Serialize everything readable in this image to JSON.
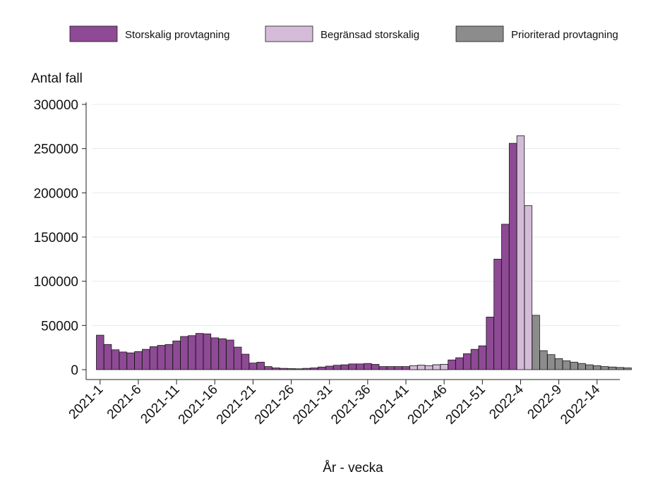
{
  "chart_data": {
    "type": "bar",
    "ylabel": "Antal fall",
    "xlabel": "År - vecka",
    "ylim": [
      0,
      300000
    ],
    "yticks": [
      0,
      50000,
      100000,
      150000,
      200000,
      250000,
      300000
    ],
    "xtick_labels": [
      "2021-1",
      "2021-6",
      "2021-11",
      "2021-16",
      "2021-21",
      "2021-26",
      "2021-31",
      "2021-36",
      "2021-41",
      "2021-46",
      "2021-51",
      "2022-4",
      "2022-9",
      "2022-14"
    ],
    "xtick_indices": [
      0,
      5,
      10,
      15,
      20,
      25,
      30,
      35,
      40,
      45,
      50,
      55,
      60,
      65
    ],
    "grid": true,
    "legend_position": "top",
    "series": [
      {
        "name": "Storskalig provtagning",
        "color": "#8e4a94",
        "x_start": 0,
        "values": [
          39000,
          28500,
          22500,
          20000,
          19000,
          20500,
          23000,
          26000,
          27500,
          28500,
          32500,
          37500,
          38500,
          41000,
          40500,
          36000,
          35000,
          33500,
          25500,
          17500,
          7500,
          8500,
          3500,
          2000,
          1500,
          1200,
          1000,
          1500,
          2000,
          3000,
          4000,
          5000,
          5500,
          6500,
          6500,
          7000,
          6000,
          3500,
          3500,
          3500,
          3500,
          4500,
          5000,
          4500,
          5500,
          6000,
          11000,
          13500,
          18000,
          23000,
          27000,
          59500,
          125000,
          164500,
          256000
        ]
      },
      {
        "name": "Begränsad storskalig",
        "color": "#d4bcd9",
        "x_start": 41,
        "values": [
          4500,
          5000,
          4500,
          5500,
          6000,
          0,
          0,
          0,
          0,
          0,
          0,
          0,
          0,
          0,
          264500,
          185500
        ]
      },
      {
        "name": "Prioriterad provtagning",
        "color": "#8c8c8c",
        "x_start": 57,
        "values": [
          61500,
          21500,
          17000,
          12500,
          10000,
          8500,
          7000,
          5500,
          4500,
          3500,
          3000,
          2500,
          2000
        ]
      }
    ]
  }
}
